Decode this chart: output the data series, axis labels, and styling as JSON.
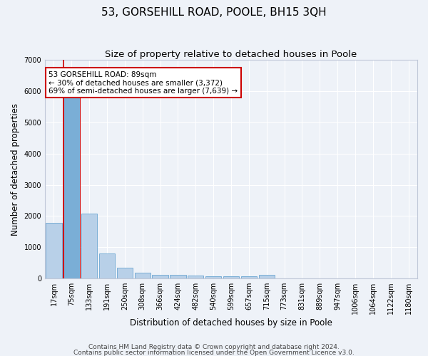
{
  "title": "53, GORSEHILL ROAD, POOLE, BH15 3QH",
  "subtitle": "Size of property relative to detached houses in Poole",
  "xlabel": "Distribution of detached houses by size in Poole",
  "ylabel": "Number of detached properties",
  "bar_color": "#b8d0e8",
  "bar_edge_color": "#7aaed6",
  "highlight_bar_index": 1,
  "highlight_bar_color": "#7aaed6",
  "highlight_bar_edge_color": "#cc0000",
  "categories": [
    "17sqm",
    "75sqm",
    "133sqm",
    "191sqm",
    "250sqm",
    "308sqm",
    "366sqm",
    "424sqm",
    "482sqm",
    "540sqm",
    "599sqm",
    "657sqm",
    "715sqm",
    "773sqm",
    "831sqm",
    "889sqm",
    "947sqm",
    "1006sqm",
    "1064sqm",
    "1122sqm",
    "1180sqm"
  ],
  "values": [
    1780,
    5820,
    2080,
    800,
    340,
    185,
    120,
    105,
    95,
    80,
    75,
    70,
    105,
    0,
    0,
    0,
    0,
    0,
    0,
    0,
    0
  ],
  "ylim": [
    0,
    7000
  ],
  "yticks": [
    0,
    1000,
    2000,
    3000,
    4000,
    5000,
    6000,
    7000
  ],
  "annotation_text": "53 GORSEHILL ROAD: 89sqm\n← 30% of detached houses are smaller (3,372)\n69% of semi-detached houses are larger (7,639) →",
  "annotation_box_color": "#ffffff",
  "annotation_box_edge_color": "#cc0000",
  "property_line_x": 1,
  "footnote1": "Contains HM Land Registry data © Crown copyright and database right 2024.",
  "footnote2": "Contains public sector information licensed under the Open Government Licence v3.0.",
  "background_color": "#eef2f8",
  "grid_color": "#ffffff",
  "title_fontsize": 11,
  "subtitle_fontsize": 9.5,
  "label_fontsize": 8.5,
  "tick_fontsize": 7,
  "footnote_fontsize": 6.5,
  "annotation_fontsize": 7.5
}
